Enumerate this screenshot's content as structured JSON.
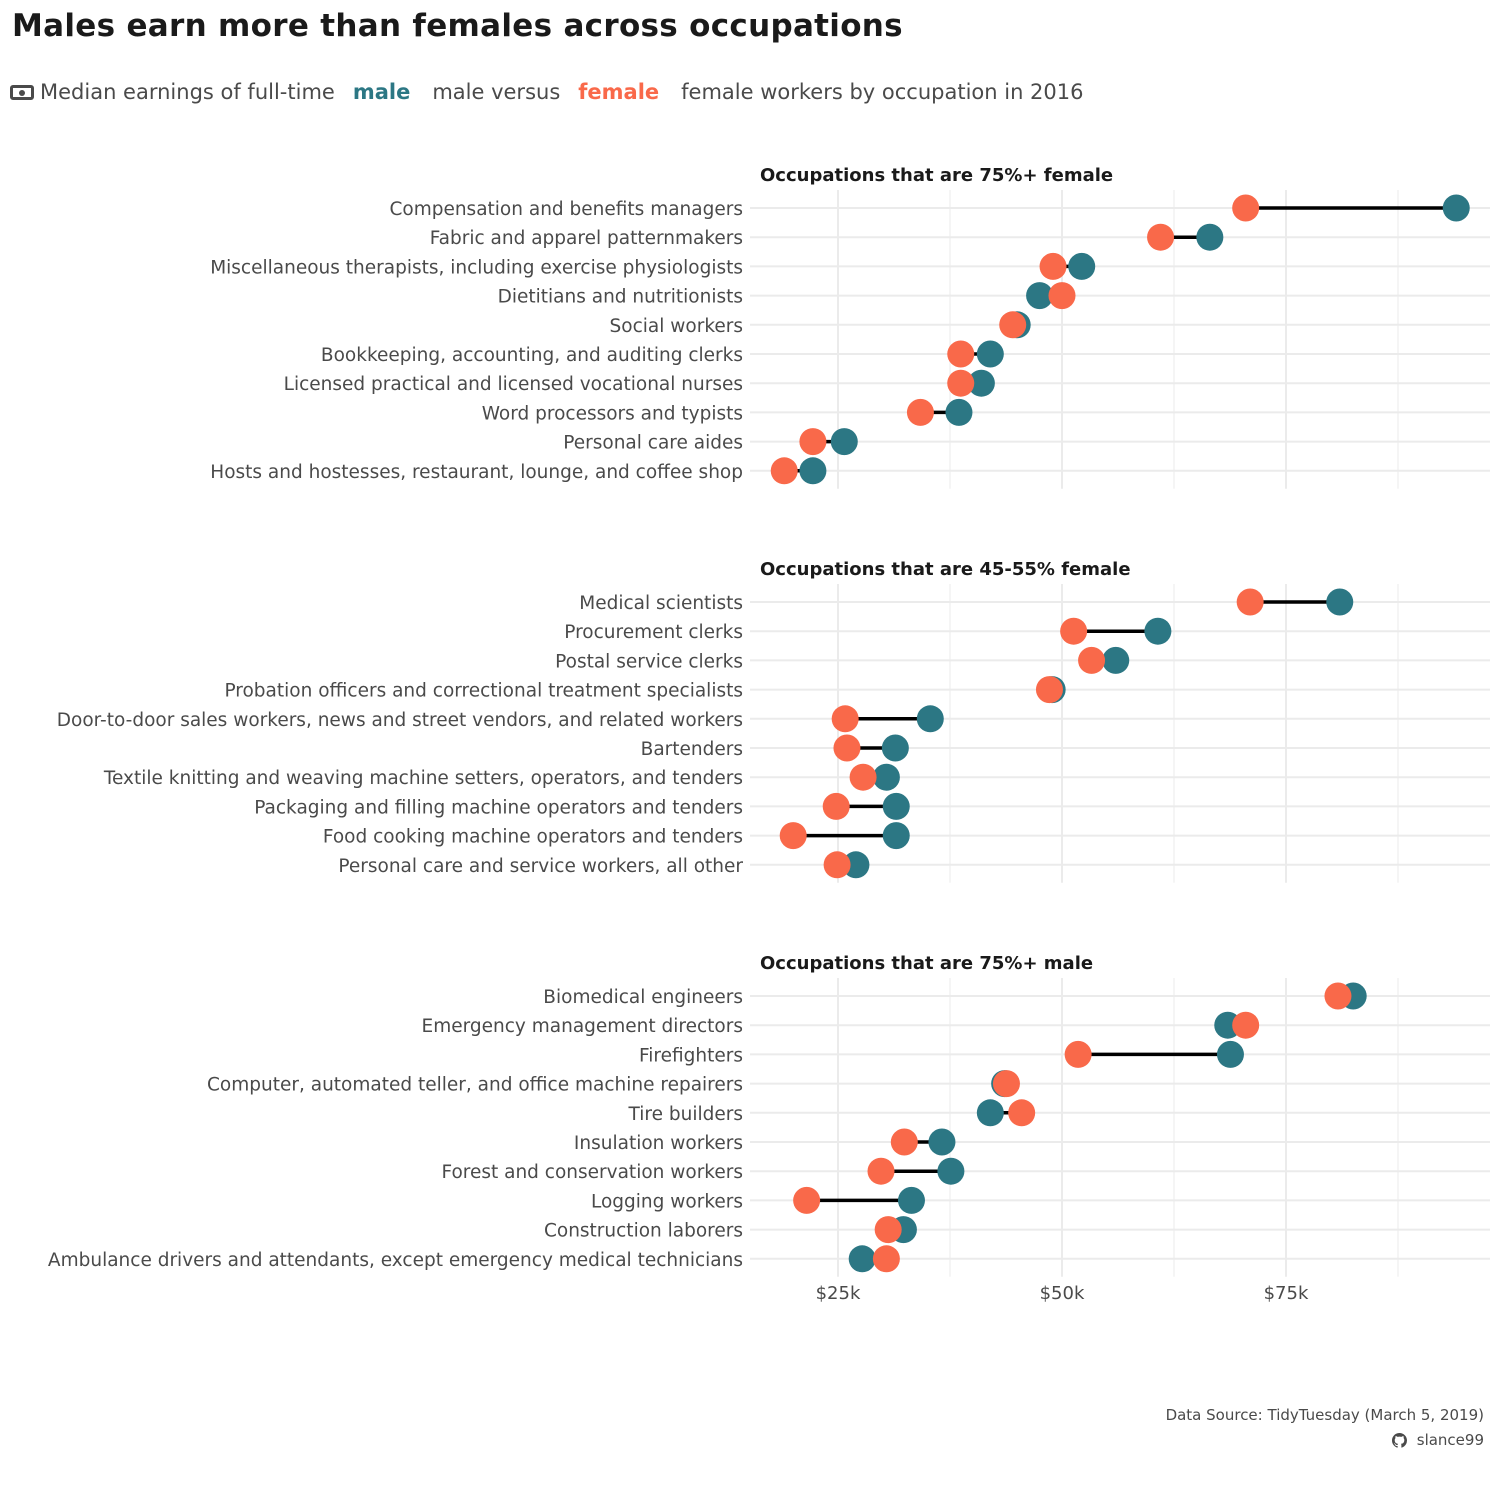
{
  "title": "Males earn more than females across occupations",
  "subtitle": {
    "prefix": "Median earnings of full-time",
    "male_key": "male",
    "middle": "male versus",
    "female_key": "female",
    "suffix": "female workers by occupation in 2016"
  },
  "caption": {
    "source": "Data Source: TidyTuesday (March 5, 2019)",
    "handle": "slance99"
  },
  "colors": {
    "male": "#2c7784",
    "female": "#f9694a",
    "segment": "#000000",
    "grid": "#ebebeb"
  },
  "icons": {
    "subtitle": "money-bill-icon",
    "caption": "github-icon"
  },
  "chart_data": {
    "type": "dumbbell",
    "x_axis": {
      "label": "",
      "min": 15000,
      "max": 98000,
      "ticks": [
        25000,
        50000,
        75000
      ],
      "tick_labels": [
        "$25k",
        "$50k",
        "$75k"
      ]
    },
    "grid": true,
    "panels": [
      {
        "title": "Occupations that are 75%+ female",
        "rows": [
          {
            "label": "Compensation and benefits managers",
            "male": 94000,
            "female": 70500
          },
          {
            "label": "Fabric and apparel patternmakers",
            "male": 66500,
            "female": 61000
          },
          {
            "label": "Miscellaneous therapists, including exercise physiologists",
            "male": 52200,
            "female": 49000
          },
          {
            "label": "Dietitians and nutritionists",
            "male": 47500,
            "female": 50000
          },
          {
            "label": "Social workers",
            "male": 45000,
            "female": 44500
          },
          {
            "label": "Bookkeeping, accounting, and auditing clerks",
            "male": 42000,
            "female": 38700
          },
          {
            "label": "Licensed practical and licensed vocational nurses",
            "male": 41000,
            "female": 38700
          },
          {
            "label": "Word processors and typists",
            "male": 38500,
            "female": 34200
          },
          {
            "label": "Personal care aides",
            "male": 25700,
            "female": 22200
          },
          {
            "label": "Hosts and hostesses, restaurant, lounge, and coffee shop",
            "male": 22200,
            "female": 19000
          }
        ]
      },
      {
        "title": "Occupations that are 45-55% female",
        "rows": [
          {
            "label": "Medical scientists",
            "male": 81000,
            "female": 71000
          },
          {
            "label": "Procurement clerks",
            "male": 60700,
            "female": 51300
          },
          {
            "label": "Postal service clerks",
            "male": 56000,
            "female": 53300
          },
          {
            "label": "Probation officers and correctional treatment specialists",
            "male": 48900,
            "female": 48600
          },
          {
            "label": "Door-to-door sales workers, news and street vendors, and related workers",
            "male": 35300,
            "female": 25800
          },
          {
            "label": "Bartenders",
            "male": 31400,
            "female": 26000
          },
          {
            "label": "Textile knitting and weaving machine setters, operators, and tenders",
            "male": 30400,
            "female": 27800
          },
          {
            "label": "Packaging and filling machine operators and tenders",
            "male": 31500,
            "female": 24800
          },
          {
            "label": "Food cooking machine operators and tenders",
            "male": 31500,
            "female": 20000
          },
          {
            "label": "Personal care and service workers, all other",
            "male": 27000,
            "female": 24900
          }
        ]
      },
      {
        "title": "Occupations that are 75%+ male",
        "rows": [
          {
            "label": "Biomedical engineers",
            "male": 82500,
            "female": 80800
          },
          {
            "label": "Emergency management directors",
            "male": 68500,
            "female": 70500
          },
          {
            "label": "Firefighters",
            "male": 68800,
            "female": 51800
          },
          {
            "label": "Computer, automated teller, and office machine repairers",
            "male": 43600,
            "female": 43800
          },
          {
            "label": "Tire builders",
            "male": 42000,
            "female": 45500
          },
          {
            "label": "Insulation workers",
            "male": 36600,
            "female": 32400
          },
          {
            "label": "Forest and conservation workers",
            "male": 37600,
            "female": 29800
          },
          {
            "label": "Logging workers",
            "male": 33200,
            "female": 21500
          },
          {
            "label": "Construction laborers",
            "male": 32300,
            "female": 30600
          },
          {
            "label": "Ambulance drivers and attendants, except emergency medical technicians",
            "male": 27700,
            "female": 30400
          }
        ]
      }
    ]
  }
}
